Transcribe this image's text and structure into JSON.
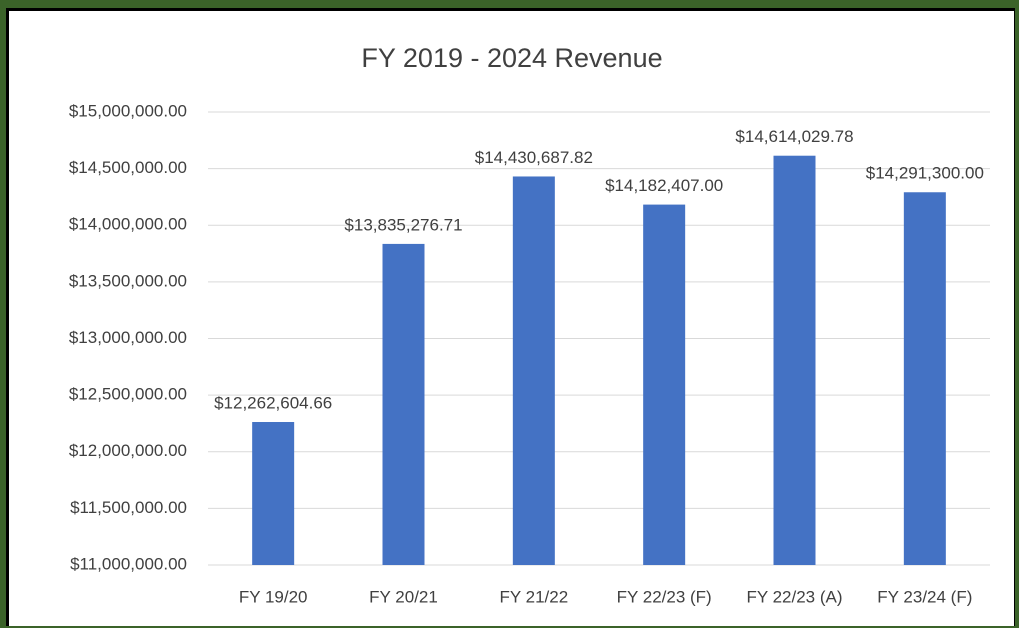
{
  "chart_data": {
    "type": "bar",
    "title": "FY 2019 - 2024 Revenue",
    "categories": [
      "FY 19/20",
      "FY 20/21",
      "FY 21/22",
      "FY 22/23 (F)",
      "FY 22/23 (A)",
      "FY 23/24 (F)"
    ],
    "values": [
      12262604.66,
      13835276.71,
      14430687.82,
      14182407.0,
      14614029.78,
      14291300.0
    ],
    "value_labels": [
      "$12,262,604.66",
      "$13,835,276.71",
      "$14,430,687.82",
      "$14,182,407.00",
      "$14,614,029.78",
      "$14,291,300.00"
    ],
    "color": "#4472c4",
    "ylim": [
      11000000,
      15000000
    ],
    "yticks": [
      {
        "value": 11000000,
        "label": "$11,000,000.00"
      },
      {
        "value": 11500000,
        "label": "$11,500,000.00"
      },
      {
        "value": 12000000,
        "label": "$12,000,000.00"
      },
      {
        "value": 12500000,
        "label": "$12,500,000.00"
      },
      {
        "value": 13000000,
        "label": "$13,000,000.00"
      },
      {
        "value": 13500000,
        "label": "$13,500,000.00"
      },
      {
        "value": 14000000,
        "label": "$14,000,000.00"
      },
      {
        "value": 14500000,
        "label": "$14,500,000.00"
      },
      {
        "value": 15000000,
        "label": "$15,000,000.00"
      }
    ],
    "grid": true
  }
}
